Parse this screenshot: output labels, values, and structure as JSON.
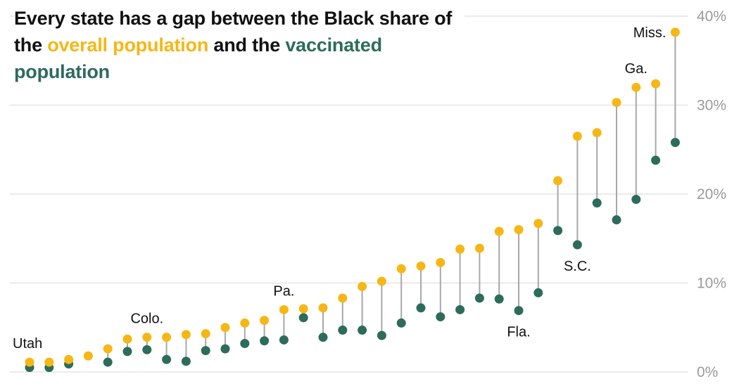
{
  "title": {
    "part1": "Every state has a gap between the Black share of the ",
    "highlight_overall": "overall population",
    "part2": " and the ",
    "highlight_vaccinated": "vaccinated population"
  },
  "colors": {
    "overall": "#f6b715",
    "vaccinated": "#2d6c5a",
    "connector": "#a8a8a8",
    "grid": "#e4e4e4"
  },
  "chart_data": {
    "type": "scatter",
    "title": "Every state has a gap between the Black share of the overall population and the vaccinated population",
    "ylim": [
      0,
      40
    ],
    "yticks": [
      {
        "value": 0,
        "label": "0%"
      },
      {
        "value": 10,
        "label": "10%"
      },
      {
        "value": 20,
        "label": "20%"
      },
      {
        "value": 30,
        "label": "30%"
      },
      {
        "value": 40,
        "label": "40%"
      }
    ],
    "series": [
      {
        "name": "overall population",
        "values": [
          1.1,
          1.1,
          1.4,
          1.8,
          2.6,
          3.7,
          3.9,
          3.9,
          4.2,
          4.3,
          5.0,
          5.5,
          5.8,
          7.0,
          7.1,
          7.2,
          8.3,
          9.6,
          10.2,
          11.6,
          11.9,
          12.3,
          13.8,
          13.9,
          15.8,
          16.0,
          16.7,
          21.5,
          26.5,
          26.9,
          30.3,
          32.0,
          32.4,
          38.2
        ]
      },
      {
        "name": "vaccinated population",
        "values": [
          0.5,
          0.5,
          0.9,
          null,
          1.1,
          2.3,
          2.5,
          1.4,
          1.2,
          2.4,
          2.6,
          3.2,
          3.5,
          3.6,
          6.1,
          3.9,
          4.7,
          4.7,
          4.1,
          5.5,
          7.2,
          6.2,
          7.0,
          8.3,
          8.2,
          6.9,
          8.9,
          15.9,
          14.3,
          19.0,
          17.1,
          19.4,
          23.8,
          25.8
        ]
      }
    ],
    "annotations": [
      {
        "index": 0,
        "label": "Utah",
        "anchor": "overall",
        "position": "above"
      },
      {
        "index": 6,
        "label": "Colo.",
        "anchor": "overall",
        "position": "above"
      },
      {
        "index": 13,
        "label": "Pa.",
        "anchor": "overall",
        "position": "above"
      },
      {
        "index": 25,
        "label": "Fla.",
        "anchor": "vaccinated",
        "position": "below"
      },
      {
        "index": 28,
        "label": "S.C.",
        "anchor": "vaccinated",
        "position": "below"
      },
      {
        "index": 31,
        "label": "Ga.",
        "anchor": "overall",
        "position": "above"
      },
      {
        "index": 33,
        "label": "Miss.",
        "anchor": "overall",
        "position": "left"
      }
    ]
  }
}
